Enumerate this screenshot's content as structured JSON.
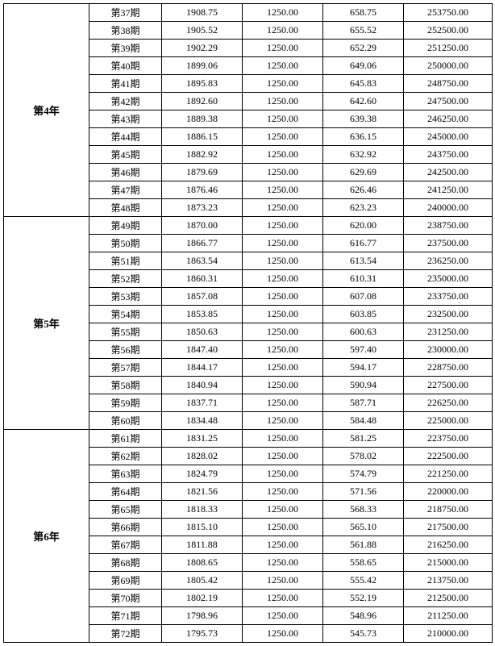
{
  "colors": {
    "background": "#ffffff",
    "border": "#000000",
    "text": "#000000"
  },
  "typography": {
    "font_family": "SimSun",
    "cell_fontsize": 12,
    "year_fontsize": 13,
    "year_fontweight": "bold"
  },
  "column_widths": {
    "year": 106,
    "period": 90,
    "col2": 100,
    "col3": 100,
    "col4": 100,
    "balance": 110
  },
  "groups": [
    {
      "year_label": "第4年",
      "periods": [
        {
          "period": "第37期",
          "v1": "1908.75",
          "v2": "1250.00",
          "v3": "658.75",
          "balance": "253750.00"
        },
        {
          "period": "第38期",
          "v1": "1905.52",
          "v2": "1250.00",
          "v3": "655.52",
          "balance": "252500.00"
        },
        {
          "period": "第39期",
          "v1": "1902.29",
          "v2": "1250.00",
          "v3": "652.29",
          "balance": "251250.00"
        },
        {
          "period": "第40期",
          "v1": "1899.06",
          "v2": "1250.00",
          "v3": "649.06",
          "balance": "250000.00"
        },
        {
          "period": "第41期",
          "v1": "1895.83",
          "v2": "1250.00",
          "v3": "645.83",
          "balance": "248750.00"
        },
        {
          "period": "第42期",
          "v1": "1892.60",
          "v2": "1250.00",
          "v3": "642.60",
          "balance": "247500.00"
        },
        {
          "period": "第43期",
          "v1": "1889.38",
          "v2": "1250.00",
          "v3": "639.38",
          "balance": "246250.00"
        },
        {
          "period": "第44期",
          "v1": "1886.15",
          "v2": "1250.00",
          "v3": "636.15",
          "balance": "245000.00"
        },
        {
          "period": "第45期",
          "v1": "1882.92",
          "v2": "1250.00",
          "v3": "632.92",
          "balance": "243750.00"
        },
        {
          "period": "第46期",
          "v1": "1879.69",
          "v2": "1250.00",
          "v3": "629.69",
          "balance": "242500.00"
        },
        {
          "period": "第47期",
          "v1": "1876.46",
          "v2": "1250.00",
          "v3": "626.46",
          "balance": "241250.00"
        },
        {
          "period": "第48期",
          "v1": "1873.23",
          "v2": "1250.00",
          "v3": "623.23",
          "balance": "240000.00"
        }
      ]
    },
    {
      "year_label": "第5年",
      "periods": [
        {
          "period": "第49期",
          "v1": "1870.00",
          "v2": "1250.00",
          "v3": "620.00",
          "balance": "238750.00"
        },
        {
          "period": "第50期",
          "v1": "1866.77",
          "v2": "1250.00",
          "v3": "616.77",
          "balance": "237500.00"
        },
        {
          "period": "第51期",
          "v1": "1863.54",
          "v2": "1250.00",
          "v3": "613.54",
          "balance": "236250.00"
        },
        {
          "period": "第52期",
          "v1": "1860.31",
          "v2": "1250.00",
          "v3": "610.31",
          "balance": "235000.00"
        },
        {
          "period": "第53期",
          "v1": "1857.08",
          "v2": "1250.00",
          "v3": "607.08",
          "balance": "233750.00"
        },
        {
          "period": "第54期",
          "v1": "1853.85",
          "v2": "1250.00",
          "v3": "603.85",
          "balance": "232500.00"
        },
        {
          "period": "第55期",
          "v1": "1850.63",
          "v2": "1250.00",
          "v3": "600.63",
          "balance": "231250.00"
        },
        {
          "period": "第56期",
          "v1": "1847.40",
          "v2": "1250.00",
          "v3": "597.40",
          "balance": "230000.00"
        },
        {
          "period": "第57期",
          "v1": "1844.17",
          "v2": "1250.00",
          "v3": "594.17",
          "balance": "228750.00"
        },
        {
          "period": "第58期",
          "v1": "1840.94",
          "v2": "1250.00",
          "v3": "590.94",
          "balance": "227500.00"
        },
        {
          "period": "第59期",
          "v1": "1837.71",
          "v2": "1250.00",
          "v3": "587.71",
          "balance": "226250.00"
        },
        {
          "period": "第60期",
          "v1": "1834.48",
          "v2": "1250.00",
          "v3": "584.48",
          "balance": "225000.00"
        }
      ]
    },
    {
      "year_label": "第6年",
      "periods": [
        {
          "period": "第61期",
          "v1": "1831.25",
          "v2": "1250.00",
          "v3": "581.25",
          "balance": "223750.00"
        },
        {
          "period": "第62期",
          "v1": "1828.02",
          "v2": "1250.00",
          "v3": "578.02",
          "balance": "222500.00"
        },
        {
          "period": "第63期",
          "v1": "1824.79",
          "v2": "1250.00",
          "v3": "574.79",
          "balance": "221250.00"
        },
        {
          "period": "第64期",
          "v1": "1821.56",
          "v2": "1250.00",
          "v3": "571.56",
          "balance": "220000.00"
        },
        {
          "period": "第65期",
          "v1": "1818.33",
          "v2": "1250.00",
          "v3": "568.33",
          "balance": "218750.00"
        },
        {
          "period": "第66期",
          "v1": "1815.10",
          "v2": "1250.00",
          "v3": "565.10",
          "balance": "217500.00"
        },
        {
          "period": "第67期",
          "v1": "1811.88",
          "v2": "1250.00",
          "v3": "561.88",
          "balance": "216250.00"
        },
        {
          "period": "第68期",
          "v1": "1808.65",
          "v2": "1250.00",
          "v3": "558.65",
          "balance": "215000.00"
        },
        {
          "period": "第69期",
          "v1": "1805.42",
          "v2": "1250.00",
          "v3": "555.42",
          "balance": "213750.00"
        },
        {
          "period": "第70期",
          "v1": "1802.19",
          "v2": "1250.00",
          "v3": "552.19",
          "balance": "212500.00"
        },
        {
          "period": "第71期",
          "v1": "1798.96",
          "v2": "1250.00",
          "v3": "548.96",
          "balance": "211250.00"
        },
        {
          "period": "第72期",
          "v1": "1795.73",
          "v2": "1250.00",
          "v3": "545.73",
          "balance": "210000.00"
        }
      ]
    }
  ]
}
